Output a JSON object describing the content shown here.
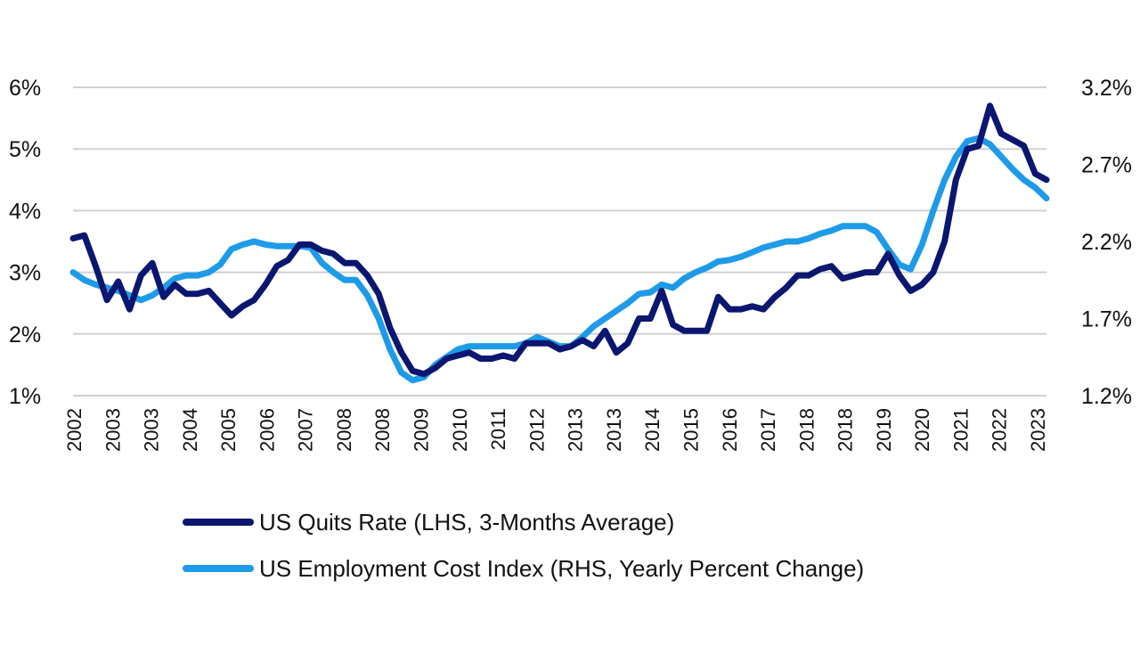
{
  "chart_data": {
    "type": "line",
    "y_left": {
      "ticks": [
        "6%",
        "5%",
        "4%",
        "3%",
        "2%",
        "1%"
      ],
      "min": 1,
      "max": 6
    },
    "y_right": {
      "ticks": [
        "3.2%",
        "2.7%",
        "2.2%",
        "1.7%",
        "1.2%"
      ],
      "min": 1.2,
      "max": 3.2
    },
    "x_tick_labels": [
      "2002",
      "2003",
      "2003",
      "2004",
      "2005",
      "2006",
      "2007",
      "2008",
      "2008",
      "2009",
      "2010",
      "2011",
      "2012",
      "2013",
      "2013",
      "2014",
      "2015",
      "2016",
      "2017",
      "2018",
      "2018",
      "2019",
      "2020",
      "2021",
      "2022",
      "2023"
    ],
    "grid": true,
    "legend_position": "bottom",
    "colors": {
      "quits": "#0b1670",
      "eci": "#1e9be8",
      "grid": "#d0d0d0"
    },
    "series": [
      {
        "name": "US Quits Rate (LHS, 3-Months Average)",
        "axis": "left",
        "values": [
          3.55,
          3.6,
          3.1,
          2.55,
          2.85,
          2.4,
          2.95,
          3.15,
          2.6,
          2.8,
          2.65,
          2.65,
          2.7,
          2.5,
          2.3,
          2.45,
          2.55,
          2.8,
          3.1,
          3.2,
          3.45,
          3.45,
          3.35,
          3.3,
          3.15,
          3.15,
          2.95,
          2.65,
          2.1,
          1.7,
          1.4,
          1.35,
          1.45,
          1.6,
          1.65,
          1.7,
          1.6,
          1.6,
          1.65,
          1.6,
          1.85,
          1.85,
          1.85,
          1.75,
          1.8,
          1.9,
          1.8,
          2.05,
          1.7,
          1.85,
          2.25,
          2.25,
          2.7,
          2.15,
          2.05,
          2.05,
          2.05,
          2.6,
          2.4,
          2.4,
          2.45,
          2.4,
          2.6,
          2.75,
          2.95,
          2.95,
          3.05,
          3.1,
          2.9,
          2.95,
          3.0,
          3.0,
          3.3,
          2.95,
          2.7,
          2.8,
          3.0,
          3.5,
          4.5,
          5.0,
          5.05,
          5.7,
          5.25,
          5.15,
          5.05,
          4.6,
          4.5
        ]
      },
      {
        "name": "US Employment Cost Index (RHS, Yearly Percent Change)",
        "axis": "right",
        "values": [
          2.0,
          1.95,
          1.92,
          1.9,
          1.88,
          1.85,
          1.82,
          1.85,
          1.9,
          1.96,
          1.98,
          1.98,
          2.0,
          2.05,
          2.15,
          2.18,
          2.2,
          2.18,
          2.17,
          2.17,
          2.17,
          2.16,
          2.06,
          2.0,
          1.95,
          1.95,
          1.85,
          1.7,
          1.5,
          1.35,
          1.3,
          1.32,
          1.4,
          1.45,
          1.5,
          1.52,
          1.52,
          1.52,
          1.52,
          1.52,
          1.54,
          1.58,
          1.55,
          1.52,
          1.52,
          1.58,
          1.65,
          1.7,
          1.75,
          1.8,
          1.86,
          1.87,
          1.92,
          1.9,
          1.96,
          2.0,
          2.03,
          2.07,
          2.08,
          2.1,
          2.13,
          2.16,
          2.18,
          2.2,
          2.2,
          2.22,
          2.25,
          2.27,
          2.3,
          2.3,
          2.3,
          2.26,
          2.15,
          2.05,
          2.02,
          2.18,
          2.4,
          2.6,
          2.75,
          2.85,
          2.87,
          2.83,
          2.75,
          2.67,
          2.6,
          2.55,
          2.48
        ]
      }
    ]
  }
}
